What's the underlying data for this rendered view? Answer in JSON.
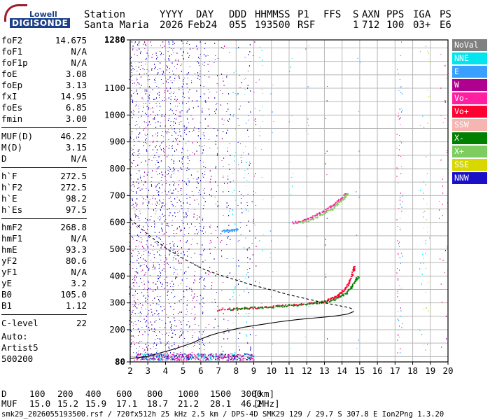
{
  "logo": {
    "line1": "Lowell",
    "line2": "DIGISONDE"
  },
  "header": {
    "labels": [
      "Station",
      "YYYY",
      "DAY",
      "DDD",
      "HHMMSS",
      "P1",
      "FFS",
      "S",
      "AXN",
      "PPS",
      "IGA",
      "PS"
    ],
    "values": [
      "Santa Maria",
      "2026",
      "Feb24",
      "055",
      "193500",
      "RSF",
      "",
      "1",
      "712",
      "100",
      "03+",
      "E6"
    ]
  },
  "params": [
    [
      {
        "name": "foF2",
        "value": "14.675"
      },
      {
        "name": "foF1",
        "value": "N/A"
      },
      {
        "name": "foF1p",
        "value": "N/A"
      },
      {
        "name": "foE",
        "value": "3.08"
      },
      {
        "name": "foEp",
        "value": "3.13"
      },
      {
        "name": "fxI",
        "value": "14.95"
      },
      {
        "name": "foEs",
        "value": "6.85"
      },
      {
        "name": "fmin",
        "value": "3.00"
      }
    ],
    [
      {
        "name": "MUF(D)",
        "value": "46.22"
      },
      {
        "name": "M(D)",
        "value": "3.15"
      },
      {
        "name": "D",
        "value": "N/A"
      }
    ],
    [
      {
        "name": "h`F",
        "value": "272.5"
      },
      {
        "name": "h`F2",
        "value": "272.5"
      },
      {
        "name": "h`E",
        "value": "98.2"
      },
      {
        "name": "h`Es",
        "value": "97.5"
      }
    ],
    [
      {
        "name": "hmF2",
        "value": "268.8"
      },
      {
        "name": "hmF1",
        "value": "N/A"
      },
      {
        "name": "hmE",
        "value": "93.3"
      },
      {
        "name": "yF2",
        "value": "80.6"
      },
      {
        "name": "yF1",
        "value": "N/A"
      },
      {
        "name": "yE",
        "value": "3.2"
      },
      {
        "name": "B0",
        "value": "105.0"
      },
      {
        "name": "B1",
        "value": "1.12"
      }
    ],
    [
      {
        "name": "C-level",
        "value": "22"
      }
    ]
  ],
  "auto": {
    "line1": "Auto:",
    "line2": "Artist5",
    "line3": "500200"
  },
  "legend": [
    {
      "label": "NoVal",
      "color": "#808080"
    },
    {
      "label": "NNE",
      "color": "#00e5ee"
    },
    {
      "label": "E",
      "color": "#3aa0ff"
    },
    {
      "label": "W",
      "color": "#b0008f"
    },
    {
      "label": "Vo-",
      "color": "#ff1fa0"
    },
    {
      "label": "Vo+",
      "color": "#ff0030"
    },
    {
      "label": "SSW",
      "color": "#f5b5b0"
    },
    {
      "label": "X-",
      "color": "#008000"
    },
    {
      "label": "X+",
      "color": "#7ccc5f"
    },
    {
      "label": "SSE",
      "color": "#d8d800"
    },
    {
      "label": "NNW",
      "color": "#1a10c8"
    }
  ],
  "bottom": {
    "d_label": "D",
    "d_values": [
      "100",
      "200",
      "400",
      "600",
      "800",
      "1000",
      "1500",
      "3000"
    ],
    "d_unit": "[km]",
    "muf_label": "MUF",
    "muf_values": [
      "15.0",
      "15.2",
      "15.9",
      "17.1",
      "18.7",
      "21.2",
      "28.1",
      "46.2"
    ],
    "muf_unit": "[MHz]"
  },
  "footer": "smk29_2026055193500.rsf / 720fx512h 25 kHz 2.5 km / DPS-4D SMK29 129 / 29.7 S 307.8 E Ion2Png 1.3.20",
  "chart_data": {
    "type": "scatter",
    "x_range": [
      2,
      20
    ],
    "y_range": [
      80,
      1280
    ],
    "x_ticks": [
      2,
      3,
      4,
      5,
      6,
      7,
      8,
      9,
      10,
      11,
      12,
      13,
      14,
      15,
      16,
      17,
      18,
      19,
      20
    ],
    "y_ticks": [
      80,
      200,
      300,
      400,
      500,
      600,
      700,
      800,
      900,
      1000,
      1100,
      1280
    ],
    "grid": true,
    "series": [
      {
        "name": "Vo+",
        "x": [
          6.9,
          8,
          9,
          10,
          11,
          12,
          12.8,
          13.3,
          13.7,
          14,
          14.3,
          14.5,
          14.62,
          14.67
        ],
        "y": [
          275,
          280,
          283,
          288,
          292,
          298,
          305,
          315,
          328,
          345,
          370,
          400,
          425,
          440
        ]
      },
      {
        "name": "X-",
        "x": [
          7.6,
          8.5,
          9.5,
          10.5,
          11.5,
          12.5,
          13.3,
          13.8,
          14.2,
          14.5,
          14.7,
          14.9
        ],
        "y": [
          278,
          282,
          285,
          290,
          295,
          302,
          310,
          322,
          338,
          360,
          385,
          400
        ]
      },
      {
        "name": "Vo-",
        "x": [
          11.2,
          11.8,
          12.4,
          13,
          13.5,
          13.9,
          14.2
        ],
        "y": [
          600,
          610,
          625,
          645,
          668,
          690,
          710
        ]
      },
      {
        "name": "X+",
        "x": [
          11.6,
          12.2,
          12.8,
          13.4,
          13.8,
          14.1,
          14.3
        ],
        "y": [
          600,
          612,
          630,
          652,
          675,
          695,
          712
        ]
      },
      {
        "name": "E",
        "x": [
          7.2,
          7.5,
          7.8,
          8.1
        ],
        "y": [
          570,
          572,
          573,
          575
        ]
      }
    ],
    "profile_upper_dashed": {
      "x": [
        2,
        3,
        4,
        5,
        6,
        7,
        8,
        9,
        10,
        11,
        12,
        13,
        13.8,
        14.4,
        14.675
      ],
      "y": [
        612,
        555,
        505,
        465,
        430,
        405,
        385,
        365,
        348,
        330,
        315,
        300,
        290,
        282,
        275
      ]
    },
    "profile_lower_solid": {
      "x": [
        14.675,
        14.3,
        13.5,
        12.5,
        11.5,
        10.5,
        9.5,
        8.5,
        7.5,
        7,
        6.5,
        6,
        5.5,
        4.5,
        3.5,
        3,
        2
      ],
      "y": [
        268,
        258,
        250,
        244,
        238,
        230,
        220,
        210,
        196,
        188,
        178,
        165,
        150,
        128,
        110,
        100,
        93
      ]
    },
    "noise": {
      "columns": [
        {
          "x": 2.05,
          "y0": 115,
          "y1": 1280,
          "color": "#1a10c8",
          "density": 0.5
        },
        {
          "x": 2.25,
          "y0": 115,
          "y1": 1280,
          "color": "#b0008f",
          "density": 0.35
        },
        {
          "x": 2.45,
          "y0": 115,
          "y1": 1280,
          "color": "#1a10c8",
          "density": 0.45
        },
        {
          "x": 2.7,
          "y0": 115,
          "y1": 1280,
          "color": "#b0008f",
          "density": 0.35
        },
        {
          "x": 2.95,
          "y0": 115,
          "y1": 1280,
          "color": "#1a10c8",
          "density": 0.5
        },
        {
          "x": 3.2,
          "y0": 115,
          "y1": 1280,
          "color": "#b0008f",
          "density": 0.3
        },
        {
          "x": 3.45,
          "y0": 115,
          "y1": 1280,
          "color": "#1a10c8",
          "density": 0.5
        },
        {
          "x": 3.7,
          "y0": 115,
          "y1": 1280,
          "color": "#1a10c8",
          "density": 0.45
        },
        {
          "x": 3.95,
          "y0": 115,
          "y1": 1280,
          "color": "#b0008f",
          "density": 0.35
        },
        {
          "x": 4.2,
          "y0": 115,
          "y1": 1280,
          "color": "#1a10c8",
          "density": 0.4
        },
        {
          "x": 4.45,
          "y0": 115,
          "y1": 1280,
          "color": "#1a10c8",
          "density": 0.45
        },
        {
          "x": 4.7,
          "y0": 115,
          "y1": 1280,
          "color": "#b0008f",
          "density": 0.3
        },
        {
          "x": 4.95,
          "y0": 115,
          "y1": 1280,
          "color": "#1a10c8",
          "density": 0.4
        },
        {
          "x": 5.25,
          "y0": 115,
          "y1": 1280,
          "color": "#1a10c8",
          "density": 0.35
        },
        {
          "x": 5.55,
          "y0": 115,
          "y1": 1280,
          "color": "#b0008f",
          "density": 0.25
        },
        {
          "x": 5.85,
          "y0": 115,
          "y1": 1280,
          "color": "#1a10c8",
          "density": 0.3
        },
        {
          "x": 6.15,
          "y0": 115,
          "y1": 1280,
          "color": "#1a10c8",
          "density": 0.3
        },
        {
          "x": 6.5,
          "y0": 115,
          "y1": 1280,
          "color": "#b0008f",
          "density": 0.2
        },
        {
          "x": 6.85,
          "y0": 115,
          "y1": 1280,
          "color": "#1a10c8",
          "density": 0.25
        },
        {
          "x": 7.2,
          "y0": 115,
          "y1": 1280,
          "color": "#b0008f",
          "density": 0.2
        },
        {
          "x": 7.55,
          "y0": 115,
          "y1": 1280,
          "color": "#1a10c8",
          "density": 0.2
        },
        {
          "x": 7.9,
          "y0": 115,
          "y1": 1280,
          "color": "#00e5ee",
          "density": 0.15
        },
        {
          "x": 8.2,
          "y0": 115,
          "y1": 1280,
          "color": "#1a10c8",
          "density": 0.2
        },
        {
          "x": 8.5,
          "y0": 115,
          "y1": 1280,
          "color": "#00e5ee",
          "density": 0.15
        },
        {
          "x": 8.7,
          "y0": 115,
          "y1": 1280,
          "color": "#1a10c8",
          "density": 0.18
        },
        {
          "x": 9.0,
          "y0": 115,
          "y1": 1280,
          "color": "#b0008f",
          "density": 0.15
        },
        {
          "x": 9.4,
          "y0": 115,
          "y1": 1280,
          "color": "#00e5ee",
          "density": 0.12
        },
        {
          "x": 10.0,
          "y0": 115,
          "y1": 1280,
          "color": "#3aa0ff",
          "density": 0.08
        },
        {
          "x": 11.1,
          "y0": 115,
          "y1": 1280,
          "color": "#00e5ee",
          "density": 0.08
        },
        {
          "x": 12.0,
          "y0": 115,
          "y1": 1280,
          "color": "#3aa0ff",
          "density": 0.06
        },
        {
          "x": 13.1,
          "y0": 115,
          "y1": 1280,
          "color": "#b0008f",
          "density": 0.05
        },
        {
          "x": 14.9,
          "y0": 115,
          "y1": 1280,
          "color": "#3aa0ff",
          "density": 0.06
        },
        {
          "x": 17.2,
          "y0": 115,
          "y1": 1280,
          "color": "#ff1fa0",
          "density": 0.2
        },
        {
          "x": 17.3,
          "y0": 115,
          "y1": 1280,
          "color": "#3aa0ff",
          "density": 0.12
        },
        {
          "x": 18.5,
          "y0": 115,
          "y1": 1280,
          "color": "#00e5ee",
          "density": 0.08
        },
        {
          "x": 18.7,
          "y0": 115,
          "y1": 1280,
          "color": "#7ccc5f",
          "density": 0.1
        },
        {
          "x": 18.9,
          "y0": 115,
          "y1": 1280,
          "color": "#d8d800",
          "density": 0.08
        },
        {
          "x": 19.6,
          "y0": 115,
          "y1": 1280,
          "color": "#ff1fa0",
          "density": 0.07
        },
        {
          "x": 19.9,
          "y0": 115,
          "y1": 1280,
          "color": "#b0008f",
          "density": 0.06
        }
      ],
      "band_es": {
        "x0": 2.2,
        "x1": 9.0,
        "y0": 88,
        "y1": 112,
        "colors": [
          "#1a10c8",
          "#00e5ee",
          "#b0008f",
          "#ff1fa0"
        ]
      }
    }
  }
}
